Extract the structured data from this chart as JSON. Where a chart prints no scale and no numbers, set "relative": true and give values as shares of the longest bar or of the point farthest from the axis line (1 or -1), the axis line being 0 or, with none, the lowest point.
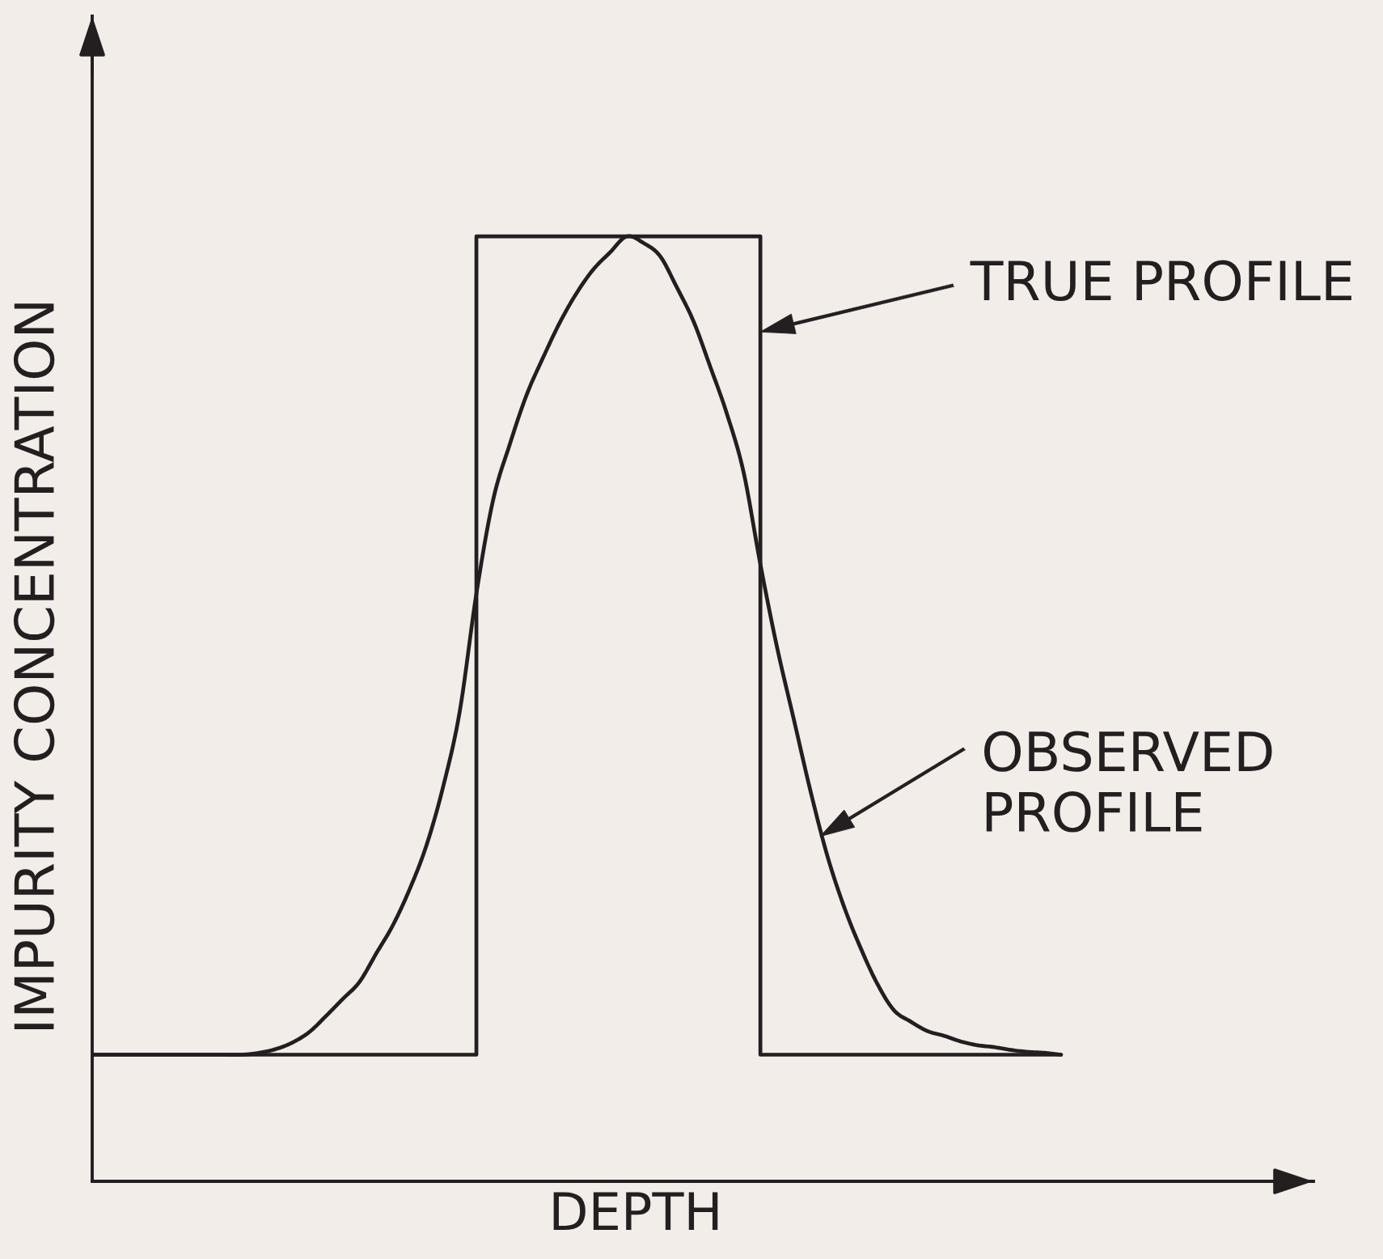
{
  "chart_data": {
    "type": "line",
    "xlabel": "DEPTH",
    "ylabel": "IMPURITY CONCENTRATION",
    "relative": true,
    "legend": "right",
    "categories": [
      null,
      null,
      null,
      null,
      null,
      null,
      null,
      null,
      null,
      null,
      null,
      null,
      null,
      null,
      null,
      null,
      null,
      null,
      null,
      null,
      null,
      null,
      null,
      null,
      null,
      null,
      null,
      null,
      null,
      null,
      null,
      null,
      null,
      null,
      null,
      null,
      null,
      null,
      null,
      null,
      null,
      null,
      null,
      null,
      null,
      null,
      null,
      null,
      null,
      null,
      null,
      null,
      null,
      null,
      null,
      null,
      null,
      null,
      null
    ],
    "series": [
      {
        "name": "TRUE PROFILE",
        "type": "step",
        "color": "#231f20",
        "values": [
          0.134,
          0.134,
          0.134,
          0.134,
          0.134,
          0.134,
          0.134,
          0.134,
          0.134,
          0.134,
          0.134,
          0.134,
          0.134,
          0.134,
          0.134,
          0.134,
          0.134,
          0.134,
          0.134,
          0.134,
          0.134,
          0.134,
          0.134,
          1,
          1,
          1,
          1,
          1,
          1,
          1,
          1,
          1,
          1,
          1,
          1,
          1,
          1,
          1,
          1,
          1,
          0.134,
          0.134,
          0.134,
          0.134,
          0.134,
          0.134,
          0.134,
          0.134,
          0.134,
          0.134,
          0.134,
          0.134,
          0.134,
          0.134,
          0.134,
          0.134,
          0.134,
          0.134,
          0.134
        ]
      },
      {
        "name": "OBSERVED PROFILE",
        "color": "#231f20",
        "values": [
          0.134,
          0.134,
          0.134,
          0.134,
          0.134,
          0.134,
          0.134,
          0.134,
          0.134,
          0.134,
          0.136,
          0.14,
          0.147,
          0.158,
          0.175,
          0.193,
          0.211,
          0.241,
          0.271,
          0.309,
          0.355,
          0.417,
          0.497,
          0.622,
          0.721,
          0.78,
          0.832,
          0.872,
          0.909,
          0.94,
          0.965,
          0.983,
          1,
          0.993,
          0.979,
          0.946,
          0.91,
          0.862,
          0.812,
          0.75,
          0.653,
          0.565,
          0.489,
          0.413,
          0.345,
          0.291,
          0.247,
          0.209,
          0.181,
          0.169,
          0.159,
          0.154,
          0.148,
          0.144,
          0.142,
          0.139,
          0.137,
          0.136,
          0.134
        ]
      }
    ]
  }
}
